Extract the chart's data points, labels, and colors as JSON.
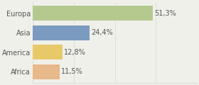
{
  "categories": [
    "Europa",
    "Asia",
    "America",
    "Africa"
  ],
  "values": [
    51.3,
    24.4,
    12.8,
    11.5
  ],
  "labels": [
    "51,3%",
    "24,4%",
    "12,8%",
    "11,5%"
  ],
  "bar_colors": [
    "#b5c98e",
    "#7a9bbf",
    "#e8c96a",
    "#e8b98a"
  ],
  "background_color": "#f0f0eb",
  "xlim": [
    0,
    70
  ],
  "bar_height": 0.78,
  "label_fontsize": 7.0,
  "category_fontsize": 7.0,
  "grid_color": "#d8d8d8",
  "text_color": "#555555"
}
